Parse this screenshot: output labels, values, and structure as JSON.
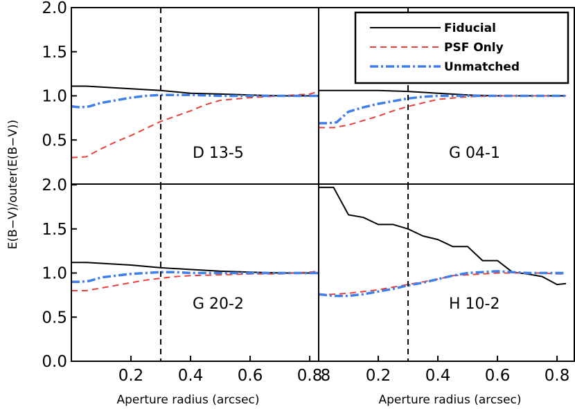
{
  "chart_data": {
    "type": "line",
    "ylabel": "E(B−V)/outer(E(B−V))",
    "xlabel": "Aperture radius (arcsec)",
    "xlim": [
      0,
      0.83
    ],
    "ylim_top": [
      0.0,
      2.0
    ],
    "ylim_bottom": [
      0.0,
      2.0
    ],
    "yticks_top": [
      "0.5",
      "1.0",
      "1.5",
      "2.0"
    ],
    "yticks_bottom": [
      "0.0",
      "0.5",
      "1.0",
      "1.5",
      "2.0"
    ],
    "xtick_values": [
      0.2,
      0.4,
      0.6,
      0.8
    ],
    "xticks_left": [
      "0.2",
      "0.4",
      "0.6",
      "0.8"
    ],
    "xticks_right": [
      "0.2",
      "0.4",
      "0.6",
      "0.8"
    ],
    "xtick_right_first": "8",
    "vline_x": 0.3,
    "legend": {
      "position": "top-right",
      "entries": [
        "Fiducial",
        "PSF Only",
        "Unmatched"
      ]
    },
    "series_styles": {
      "Fiducial": "#000000",
      "PSF Only": "#e8403a",
      "Unmatched": "#3f7fe6"
    },
    "panels": [
      {
        "label": "D 13-5",
        "series": [
          {
            "name": "Fiducial",
            "x": [
              0,
              0.05,
              0.1,
              0.15,
              0.2,
              0.3,
              0.4,
              0.5,
              0.6,
              0.7,
              0.8,
              0.83
            ],
            "values": [
              1.11,
              1.11,
              1.1,
              1.09,
              1.08,
              1.06,
              1.03,
              1.02,
              1.01,
              1.0,
              1.0,
              1.0
            ]
          },
          {
            "name": "PSF Only",
            "x": [
              0,
              0.05,
              0.1,
              0.15,
              0.2,
              0.25,
              0.3,
              0.35,
              0.4,
              0.45,
              0.5,
              0.6,
              0.7,
              0.8,
              0.83
            ],
            "values": [
              0.3,
              0.31,
              0.4,
              0.48,
              0.55,
              0.63,
              0.71,
              0.77,
              0.83,
              0.9,
              0.95,
              0.98,
              1.0,
              1.02,
              1.05
            ]
          },
          {
            "name": "Unmatched",
            "x": [
              0,
              0.03,
              0.06,
              0.1,
              0.15,
              0.2,
              0.25,
              0.3,
              0.35,
              0.4,
              0.5,
              0.6,
              0.7,
              0.8,
              0.83
            ],
            "values": [
              0.88,
              0.87,
              0.88,
              0.92,
              0.95,
              0.98,
              1.0,
              1.01,
              1.01,
              1.01,
              1.0,
              1.0,
              1.0,
              1.0,
              1.0
            ]
          }
        ]
      },
      {
        "label": "G 04-1",
        "series": [
          {
            "name": "Fiducial",
            "x": [
              0,
              0.05,
              0.1,
              0.2,
              0.3,
              0.4,
              0.5,
              0.6,
              0.7,
              0.83
            ],
            "values": [
              1.06,
              1.06,
              1.06,
              1.06,
              1.05,
              1.03,
              1.01,
              1.0,
              1.0,
              1.0
            ]
          },
          {
            "name": "PSF Only",
            "x": [
              0,
              0.05,
              0.1,
              0.15,
              0.2,
              0.25,
              0.3,
              0.35,
              0.4,
              0.5,
              0.6,
              0.7,
              0.83
            ],
            "values": [
              0.64,
              0.64,
              0.67,
              0.72,
              0.77,
              0.83,
              0.88,
              0.92,
              0.96,
              0.99,
              1.0,
              1.0,
              1.0
            ]
          },
          {
            "name": "Unmatched",
            "x": [
              0,
              0.03,
              0.06,
              0.1,
              0.15,
              0.2,
              0.25,
              0.3,
              0.35,
              0.4,
              0.5,
              0.6,
              0.7,
              0.83
            ],
            "values": [
              0.69,
              0.69,
              0.7,
              0.82,
              0.87,
              0.91,
              0.94,
              0.97,
              0.99,
              1.0,
              1.0,
              1.0,
              1.0,
              1.0
            ]
          }
        ]
      },
      {
        "label": "G 20-2",
        "series": [
          {
            "name": "Fiducial",
            "x": [
              0,
              0.05,
              0.1,
              0.2,
              0.3,
              0.4,
              0.5,
              0.6,
              0.7,
              0.83
            ],
            "values": [
              1.12,
              1.12,
              1.11,
              1.09,
              1.06,
              1.04,
              1.02,
              1.01,
              1.0,
              1.0
            ]
          },
          {
            "name": "PSF Only",
            "x": [
              0,
              0.05,
              0.1,
              0.15,
              0.2,
              0.25,
              0.3,
              0.35,
              0.4,
              0.5,
              0.6,
              0.7,
              0.8,
              0.83
            ],
            "values": [
              0.8,
              0.8,
              0.83,
              0.86,
              0.89,
              0.92,
              0.94,
              0.96,
              0.97,
              0.98,
              0.99,
              0.99,
              1.01,
              1.02
            ]
          },
          {
            "name": "Unmatched",
            "x": [
              0,
              0.03,
              0.06,
              0.1,
              0.15,
              0.2,
              0.25,
              0.3,
              0.35,
              0.4,
              0.5,
              0.6,
              0.7,
              0.83
            ],
            "values": [
              0.9,
              0.9,
              0.91,
              0.95,
              0.97,
              0.99,
              1.0,
              1.01,
              1.01,
              1.0,
              1.0,
              1.0,
              1.0,
              1.0
            ]
          }
        ]
      },
      {
        "label": "H 10-2",
        "series": [
          {
            "name": "Fiducial",
            "x": [
              0.0,
              0.05,
              0.1,
              0.15,
              0.2,
              0.25,
              0.3,
              0.35,
              0.4,
              0.45,
              0.5,
              0.55,
              0.6,
              0.65,
              0.7,
              0.75,
              0.8,
              0.83
            ],
            "values": [
              1.97,
              1.97,
              1.66,
              1.63,
              1.55,
              1.55,
              1.5,
              1.42,
              1.38,
              1.3,
              1.3,
              1.14,
              1.14,
              1.01,
              0.99,
              0.96,
              0.87,
              0.88
            ]
          },
          {
            "name": "PSF Only",
            "x": [
              0.0,
              0.05,
              0.1,
              0.15,
              0.2,
              0.25,
              0.3,
              0.35,
              0.4,
              0.45,
              0.5,
              0.55,
              0.6,
              0.65,
              0.7,
              0.75,
              0.8,
              0.83
            ],
            "values": [
              0.75,
              0.76,
              0.77,
              0.79,
              0.81,
              0.84,
              0.87,
              0.9,
              0.93,
              0.97,
              0.98,
              0.99,
              1.0,
              1.0,
              1.0,
              1.0,
              0.99,
              0.99
            ]
          },
          {
            "name": "Unmatched",
            "x": [
              0.0,
              0.05,
              0.1,
              0.15,
              0.2,
              0.25,
              0.3,
              0.35,
              0.4,
              0.45,
              0.5,
              0.55,
              0.6,
              0.65,
              0.7,
              0.75,
              0.8,
              0.83
            ],
            "values": [
              0.76,
              0.74,
              0.74,
              0.76,
              0.79,
              0.82,
              0.86,
              0.89,
              0.93,
              0.97,
              1.0,
              1.01,
              1.02,
              1.01,
              1.0,
              1.0,
              1.0,
              1.0
            ]
          }
        ]
      }
    ]
  }
}
